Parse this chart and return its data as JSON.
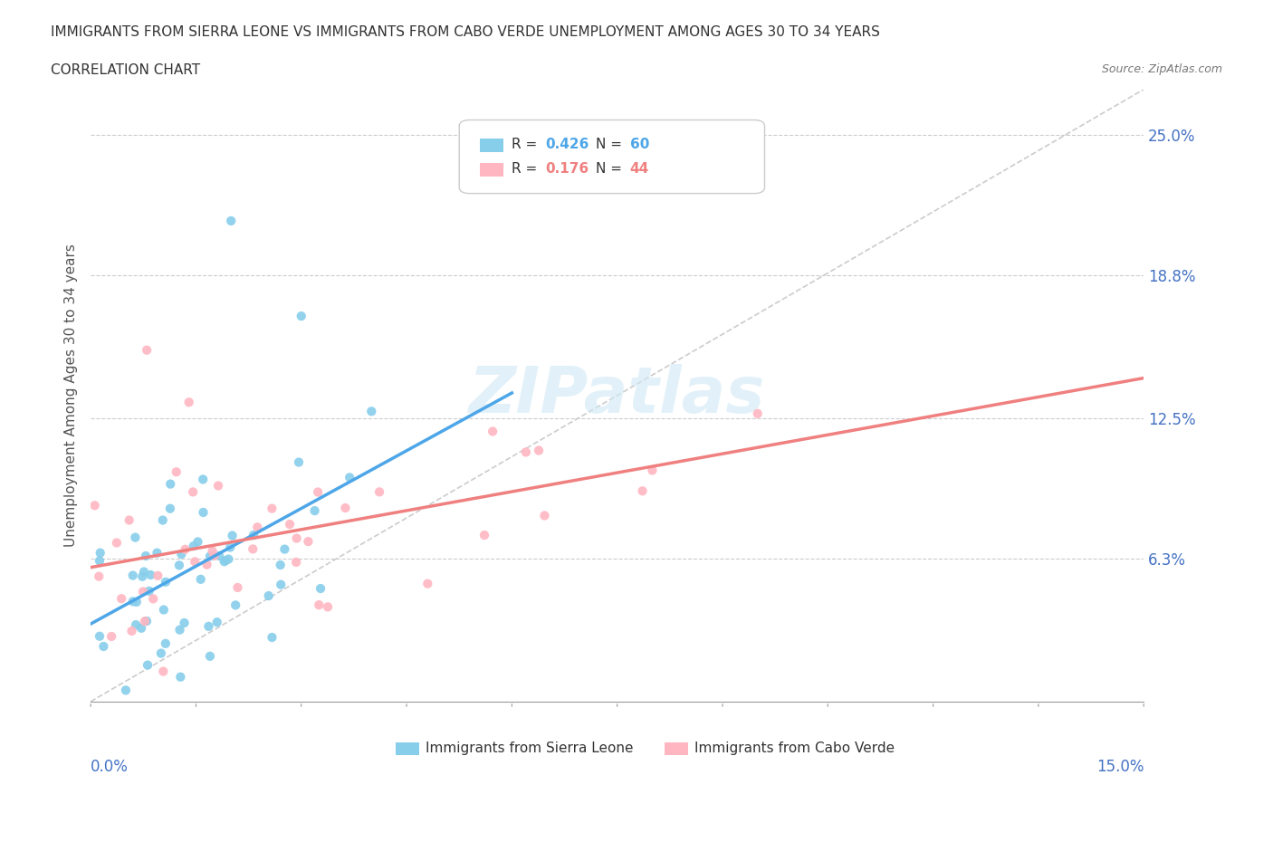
{
  "title_line1": "IMMIGRANTS FROM SIERRA LEONE VS IMMIGRANTS FROM CABO VERDE UNEMPLOYMENT AMONG AGES 30 TO 34 YEARS",
  "title_line2": "CORRELATION CHART",
  "source_text": "Source: ZipAtlas.com",
  "ylabel": "Unemployment Among Ages 30 to 34 years",
  "ytick_values": [
    0.063,
    0.125,
    0.188,
    0.25
  ],
  "ytick_labels": [
    "6.3%",
    "12.5%",
    "18.8%",
    "25.0%"
  ],
  "xlim": [
    0.0,
    0.15
  ],
  "ylim": [
    0.0,
    0.27
  ],
  "color_sierra": "#87CEEB",
  "color_cabo": "#FFB6C1",
  "color_sierra_line": "#4da6e8",
  "color_cabo_line": "#f08080",
  "color_grid": "#cccccc",
  "color_diag": "#cccccc",
  "watermark_color": "#d0e8f5"
}
